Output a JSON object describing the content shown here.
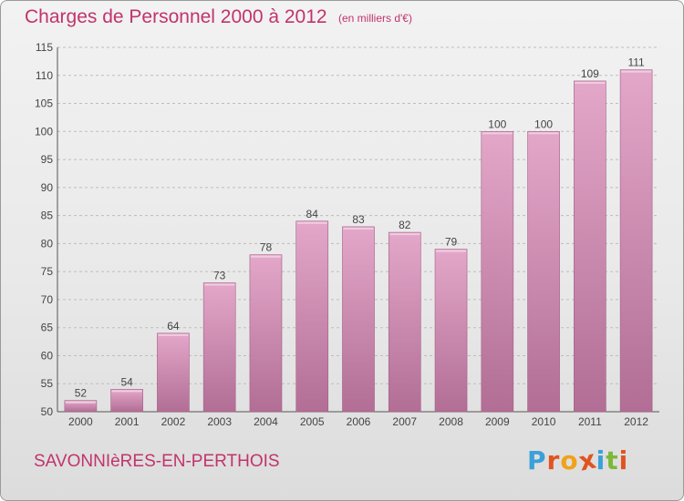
{
  "header": {
    "title": "Charges de Personnel 2000 à 2012",
    "subtitle": "(en milliers d'€)"
  },
  "footer": {
    "commune": "SAVONNIèRES-EN-PERTHOIS",
    "logo": "Proxiti"
  },
  "colors": {
    "title": "#c2336c",
    "bar_top": "#e3a7c9",
    "bar_bottom": "#b26e95",
    "grid": "#bdbdbd",
    "axis_text": "#444444",
    "logo_letters": [
      "#3aa0d8",
      "#e0541f",
      "#f0a21a",
      "#e0541f",
      "#3aa0d8",
      "#7cb83a",
      "#e0541f"
    ]
  },
  "chart_data": {
    "type": "bar",
    "categories": [
      "2000",
      "2001",
      "2002",
      "2003",
      "2004",
      "2005",
      "2006",
      "2007",
      "2008",
      "2009",
      "2010",
      "2011",
      "2012"
    ],
    "values": [
      52,
      54,
      64,
      73,
      78,
      84,
      83,
      82,
      79,
      100,
      100,
      109,
      111
    ],
    "data_labels": [
      "52",
      "54",
      "64",
      "73",
      "78",
      "84",
      "83",
      "82",
      "79",
      "100",
      "100",
      "109",
      "111"
    ],
    "title": "Charges de Personnel 2000 à 2012",
    "ylim": [
      50,
      115
    ],
    "yticks": [
      50,
      55,
      60,
      65,
      70,
      75,
      80,
      85,
      90,
      95,
      100,
      105,
      110,
      115
    ],
    "grid": true,
    "legend": "none"
  }
}
